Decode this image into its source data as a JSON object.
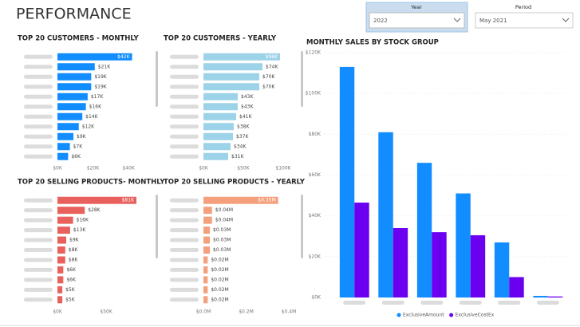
{
  "page_title": "PERFORMANCE",
  "slicers": [
    {
      "label": "Year",
      "value": "2022"
    },
    {
      "label": "Period",
      "value": "May 2021"
    }
  ],
  "chart_data": [
    {
      "type": "hbar",
      "title": "TOP 20 CUSTOMERS - MONTHLY",
      "color": "#118dff",
      "categories": [
        null,
        null,
        null,
        null,
        null,
        null,
        null,
        null,
        null,
        null,
        null
      ],
      "values": [
        42000,
        21000,
        19000,
        19000,
        17000,
        16000,
        14000,
        12000,
        9000,
        7000,
        6000
      ],
      "value_labels": [
        "$42K",
        "$21K",
        "$19K",
        "$19K",
        "$17K",
        "$16K",
        "$14K",
        "$12K",
        "$9K",
        "$7K",
        "$6K"
      ],
      "xlim": [
        0,
        44000
      ],
      "xticks": [
        {
          "value": 0,
          "label": "$0K"
        },
        {
          "value": 20000,
          "label": "$20K"
        },
        {
          "value": 40000,
          "label": "$40K"
        }
      ]
    },
    {
      "type": "hbar",
      "title": "TOP 20 CUSTOMERS - YEARLY",
      "color": "#9dd3e8",
      "categories": [
        null,
        null,
        null,
        null,
        null,
        null,
        null,
        null,
        null,
        null,
        null
      ],
      "values": [
        96000,
        74000,
        70000,
        70000,
        43000,
        43000,
        41000,
        38000,
        37000,
        34000,
        31000
      ],
      "value_labels": [
        "$96K",
        "$74K",
        "$70K",
        "$70K",
        "$43K",
        "$43K",
        "$41K",
        "$38K",
        "$37K",
        "$34K",
        "$31K"
      ],
      "xlim": [
        0,
        100000
      ],
      "xticks": [
        {
          "value": 0,
          "label": "$0K"
        },
        {
          "value": 50000,
          "label": "$50K"
        },
        {
          "value": 100000,
          "label": "$100K"
        }
      ]
    },
    {
      "type": "hbar",
      "title": "TOP 20 SELLING PRODUCTS- MONTHLY",
      "color": "#e8615c",
      "categories": [
        null,
        null,
        null,
        null,
        null,
        null,
        null,
        null,
        null,
        null,
        null
      ],
      "values": [
        81000,
        28000,
        16000,
        13000,
        9000,
        8000,
        8000,
        6000,
        6000,
        5000,
        5000
      ],
      "value_labels": [
        "$81K",
        "$28K",
        "$16K",
        "$13K",
        "$9K",
        "$8K",
        "$8K",
        "$6K",
        "$6K",
        "$5K",
        "$5K"
      ],
      "xlim": [
        0,
        90000
      ],
      "xticks": [
        {
          "value": 0,
          "label": "$0K"
        },
        {
          "value": 50000,
          "label": "$50K"
        }
      ]
    },
    {
      "type": "hbar",
      "title": "TOP 20 SELLING PRODUCTS - YEARLY",
      "color": "#f4a07c",
      "categories": [
        null,
        null,
        null,
        null,
        null,
        null,
        null,
        null,
        null,
        null,
        null
      ],
      "values": [
        350000,
        40000,
        40000,
        30000,
        30000,
        30000,
        20000,
        20000,
        20000,
        20000,
        20000
      ],
      "value_labels": [
        "$0.35M",
        "$0.04M",
        "$0.04M",
        "$0.03M",
        "$0.03M",
        "$0.03M",
        "$0.02M",
        "$0.02M",
        "$0.02M",
        "$0.02M",
        "$0.02M"
      ],
      "xlim": [
        0,
        400000
      ],
      "xticks": [
        {
          "value": 0,
          "label": "$0.0M"
        },
        {
          "value": 200000,
          "label": "$0.2M"
        },
        {
          "value": 400000,
          "label": "$0.4M"
        }
      ]
    },
    {
      "type": "column",
      "title": "MONTHLY SALES BY STOCK GROUP",
      "grid": true,
      "legend": "bottom",
      "categories": [
        null,
        null,
        null,
        null,
        null,
        null
      ],
      "series": [
        {
          "name": "ExclusiveAmount",
          "color": "#118dff",
          "values": [
            113000,
            81000,
            66000,
            51000,
            27000,
            800
          ]
        },
        {
          "name": "ExclusiveCostEx",
          "color": "#6b00f0",
          "values": [
            46500,
            34000,
            32000,
            30500,
            10000,
            500
          ]
        }
      ],
      "ylim": [
        0,
        120000
      ],
      "yticks": [
        {
          "value": 0,
          "label": "$0K"
        },
        {
          "value": 20000,
          "label": "$20K"
        },
        {
          "value": 40000,
          "label": "$40K"
        },
        {
          "value": 60000,
          "label": "$60K"
        },
        {
          "value": 80000,
          "label": "$80K"
        },
        {
          "value": 100000,
          "label": "$100K"
        },
        {
          "value": 120000,
          "label": "$120K"
        }
      ]
    }
  ]
}
